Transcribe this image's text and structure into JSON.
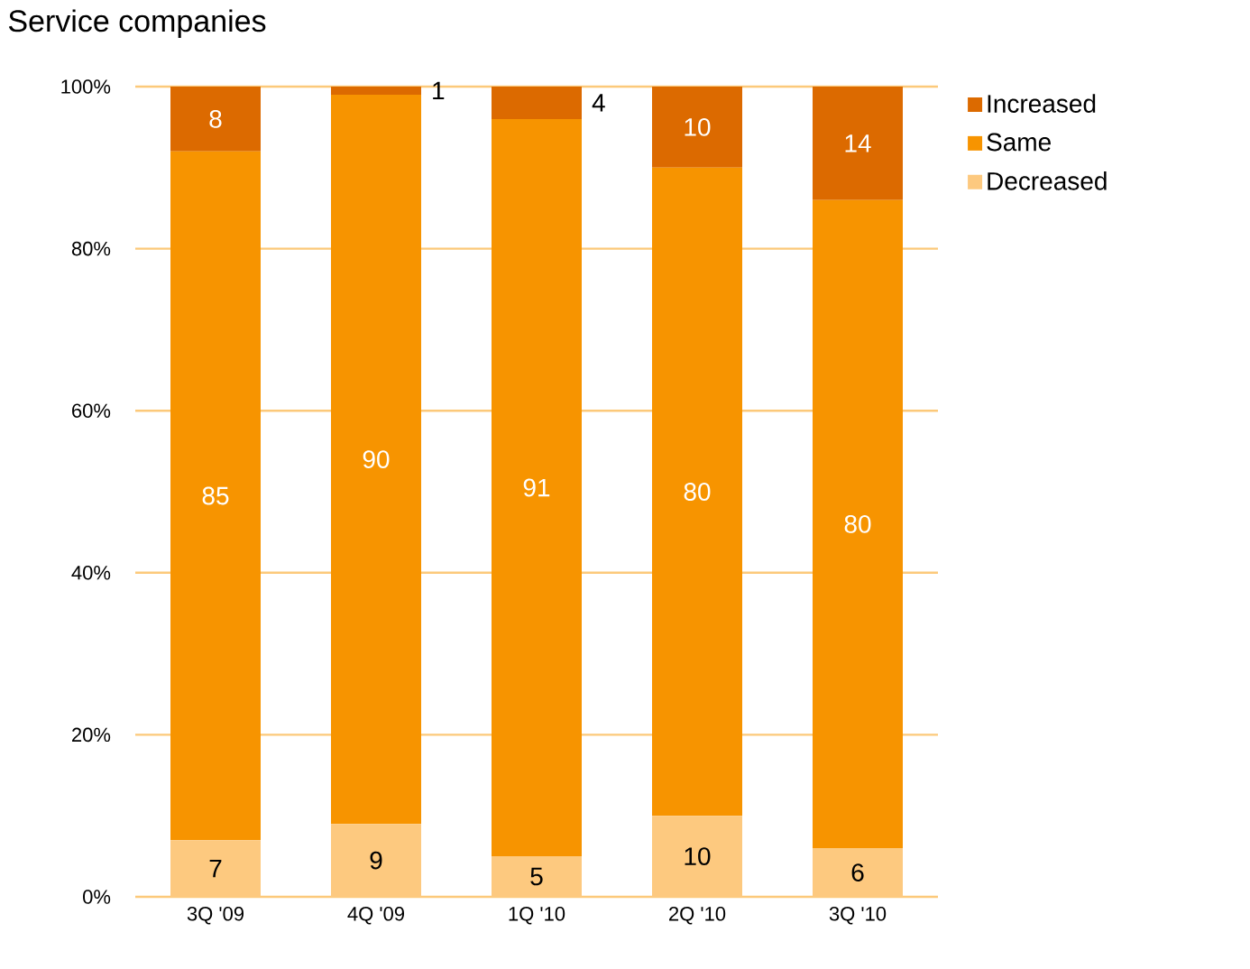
{
  "chart_data": {
    "type": "bar",
    "stacked": true,
    "title": "Service companies",
    "categories": [
      "3Q '09",
      "4Q '09",
      "1Q '10",
      "2Q '10",
      "3Q '10"
    ],
    "series": [
      {
        "name": "Decreased",
        "color": "#fdc97f",
        "values": [
          7,
          9,
          5,
          10,
          6
        ]
      },
      {
        "name": "Same",
        "color": "#f79400",
        "values": [
          85,
          90,
          91,
          80,
          80
        ]
      },
      {
        "name": "Increased",
        "color": "#dc6a00",
        "values": [
          8,
          1,
          4,
          10,
          14
        ]
      }
    ],
    "ylim": [
      0,
      100
    ],
    "yticks": [
      {
        "value": 0,
        "label": "0%"
      },
      {
        "value": 20,
        "label": "20%"
      },
      {
        "value": 40,
        "label": "40%"
      },
      {
        "value": 60,
        "label": "60%"
      },
      {
        "value": 80,
        "label": "80%"
      },
      {
        "value": 100,
        "label": "100%"
      }
    ],
    "grid": "y",
    "legend": "right",
    "data_labels": true
  }
}
